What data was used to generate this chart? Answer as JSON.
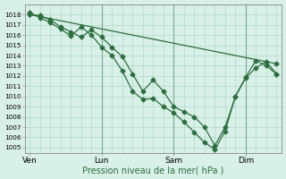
{
  "xlabel": "Pression niveau de la mer( hPa )",
  "bg_color": "#d8f0e8",
  "grid_color": "#b0d8c8",
  "line_color": "#2d6e3e",
  "vline_color": "#7aaa8a",
  "ylim": [
    1004.5,
    1019.0
  ],
  "yticks": [
    1005,
    1006,
    1007,
    1008,
    1009,
    1010,
    1011,
    1012,
    1013,
    1014,
    1015,
    1016,
    1017,
    1018
  ],
  "xtick_labels": [
    "Ven",
    "Lun",
    "Sam",
    "Dim"
  ],
  "xtick_positions": [
    0,
    28,
    56,
    84
  ],
  "xlim": [
    -2,
    98
  ],
  "vlines_x": [
    28,
    56,
    84
  ],
  "series1_x": [
    0,
    4,
    8,
    12,
    16,
    20,
    24,
    28,
    32,
    36,
    40,
    44,
    48,
    52,
    56,
    60,
    64,
    68,
    72,
    76,
    80,
    84,
    88,
    92,
    96
  ],
  "series1_y": [
    1018.0,
    1017.9,
    1017.5,
    1016.8,
    1016.3,
    1015.8,
    1016.5,
    1015.8,
    1014.8,
    1013.9,
    1012.2,
    1010.5,
    1011.6,
    1010.5,
    1009.0,
    1008.5,
    1008.0,
    1007.0,
    1005.2,
    1007.0,
    1010.0,
    1011.9,
    1013.5,
    1013.0,
    1012.2
  ],
  "series2_x": [
    0,
    4,
    8,
    12,
    16,
    20,
    24,
    28,
    32,
    36,
    40,
    44,
    48,
    52,
    56,
    60,
    64,
    68,
    72,
    76,
    80,
    84,
    88,
    92,
    96
  ],
  "series2_y": [
    1018.2,
    1017.7,
    1017.2,
    1016.6,
    1015.9,
    1016.8,
    1016.0,
    1014.8,
    1014.0,
    1012.5,
    1010.5,
    1009.7,
    1009.8,
    1009.0,
    1008.4,
    1007.5,
    1006.5,
    1005.5,
    1004.8,
    1006.6,
    1010.0,
    1011.8,
    1012.8,
    1013.4,
    1012.2
  ],
  "series3_x": [
    0,
    96
  ],
  "series3_y": [
    1018.0,
    1013.2
  ],
  "marker": "D",
  "markersize": 2.5,
  "linewidth": 0.9
}
